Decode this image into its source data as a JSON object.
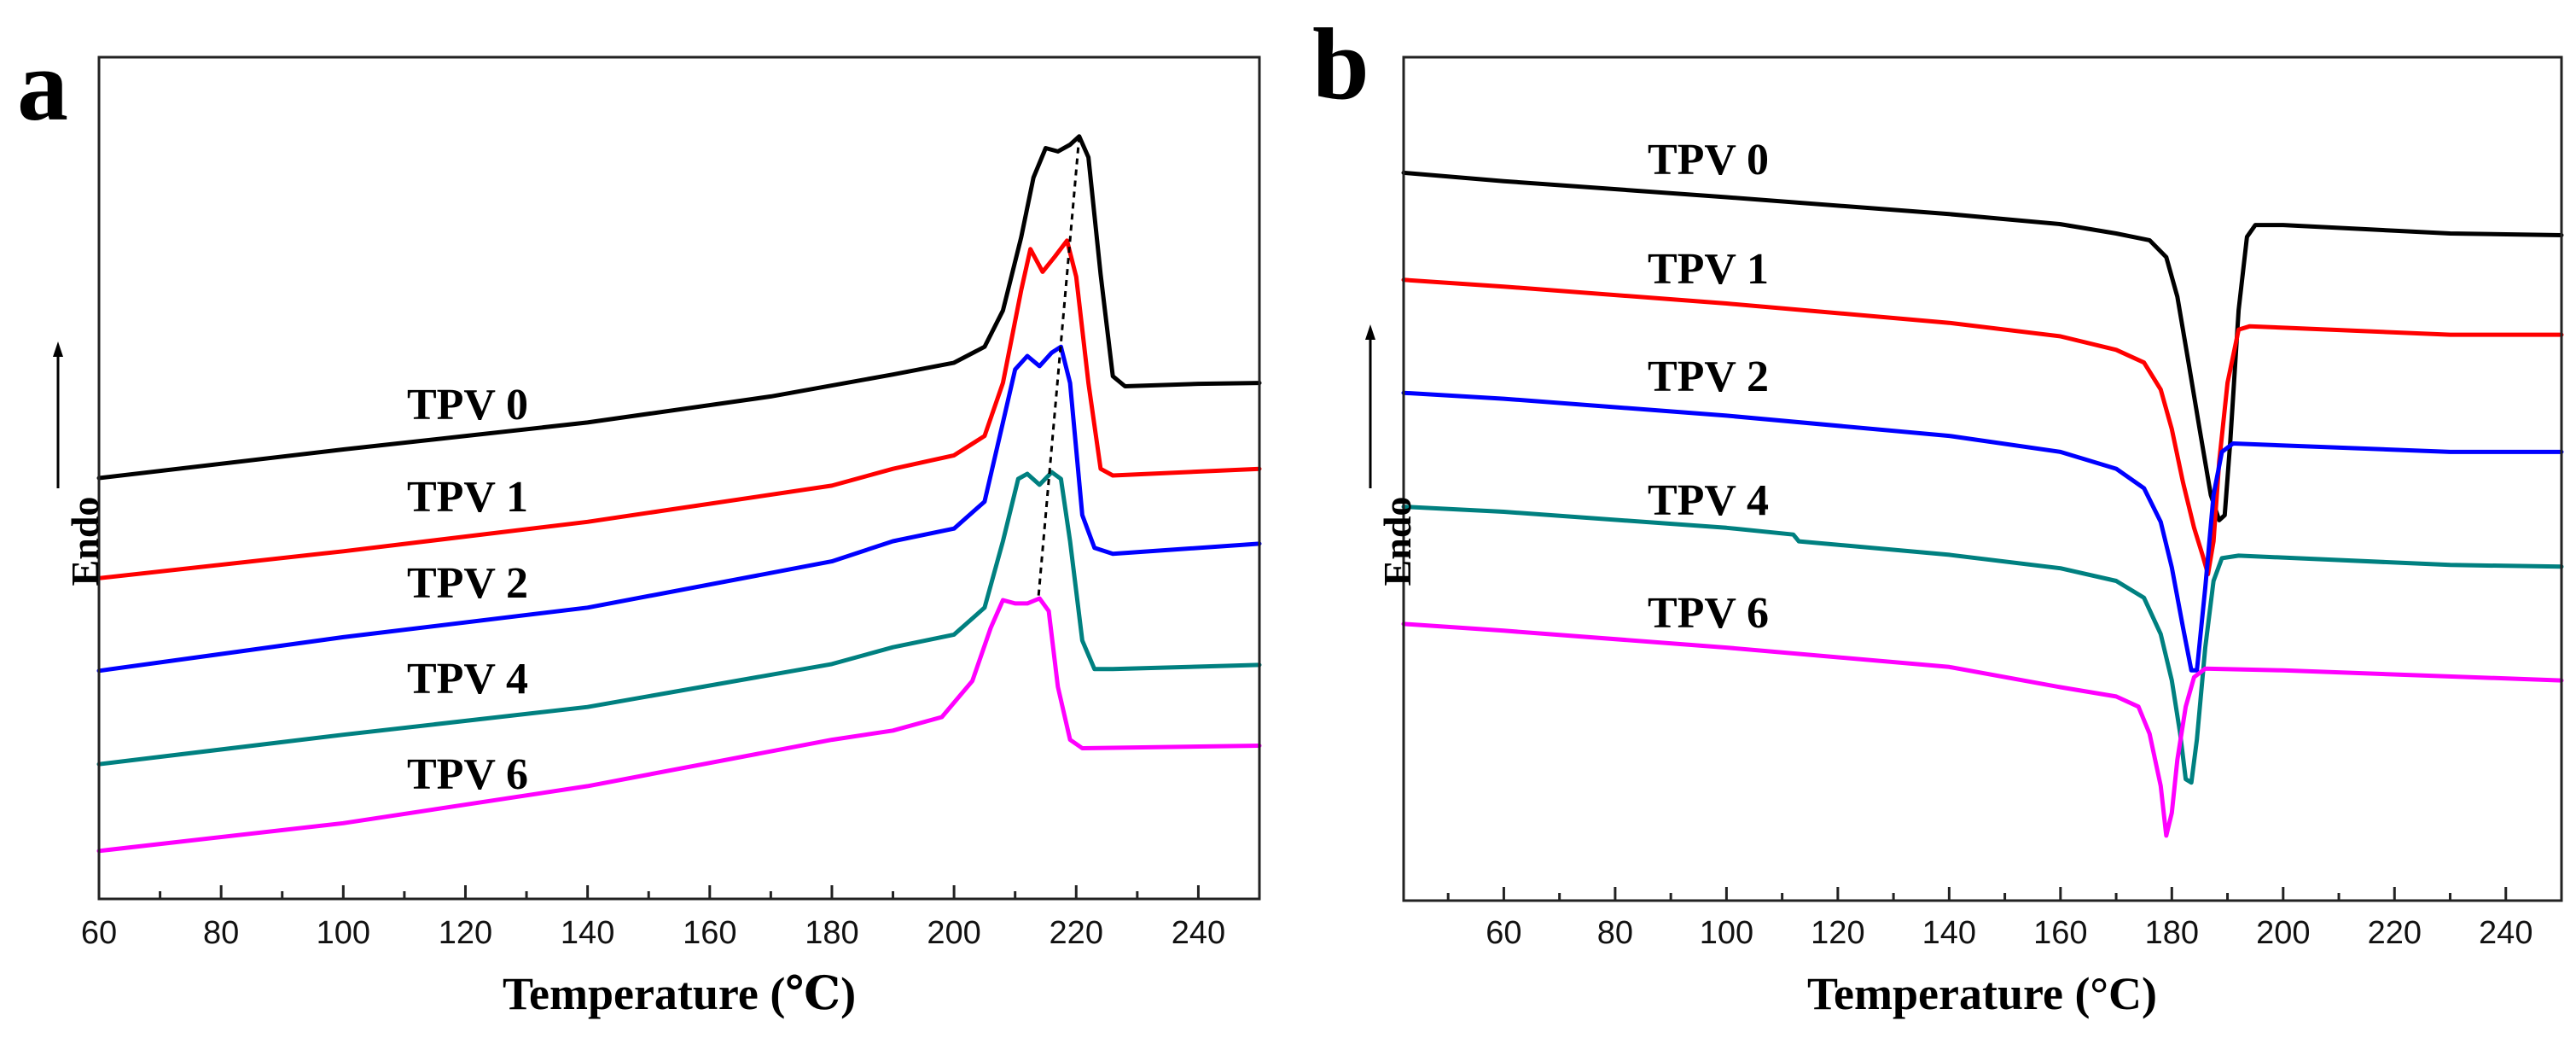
{
  "chart_data": [
    {
      "panel_label": "a",
      "type": "line",
      "title": "",
      "xlabel": "Temperature (℃)",
      "ylabel": "Endo",
      "xlim": [
        60,
        250
      ],
      "ylim": [
        0,
        100
      ],
      "xticks": [
        60,
        80,
        100,
        120,
        140,
        160,
        180,
        200,
        220,
        240
      ],
      "xtick_labels": [
        "60",
        "80",
        "100",
        "120",
        "140",
        "160",
        "180",
        "200",
        "220",
        "240"
      ],
      "grid": false,
      "series": [
        {
          "name": "TPV 0",
          "color": "#000000",
          "points": [
            [
              60,
              50.0
            ],
            [
              100,
              53.4
            ],
            [
              140,
              56.6
            ],
            [
              170,
              59.7
            ],
            [
              190,
              62.3
            ],
            [
              200,
              63.7
            ],
            [
              205,
              65.6
            ],
            [
              208,
              69.9
            ],
            [
              211,
              78.6
            ],
            [
              213,
              85.7
            ],
            [
              215,
              89.2
            ],
            [
              217,
              88.8
            ],
            [
              219,
              89.6
            ],
            [
              220.5,
              90.6
            ],
            [
              222,
              88.1
            ],
            [
              224,
              74.2
            ],
            [
              226,
              62.1
            ],
            [
              228,
              60.9
            ],
            [
              240,
              61.2
            ],
            [
              250,
              61.3
            ]
          ]
        },
        {
          "name": "TPV 1",
          "color": "#ff0000",
          "points": [
            [
              60,
              38.1
            ],
            [
              100,
              41.3
            ],
            [
              140,
              44.8
            ],
            [
              180,
              49.1
            ],
            [
              190,
              51.1
            ],
            [
              200,
              52.7
            ],
            [
              205,
              55.0
            ],
            [
              208,
              61.3
            ],
            [
              211,
              72.3
            ],
            [
              212.5,
              77.2
            ],
            [
              214.5,
              74.5
            ],
            [
              216.5,
              76.3
            ],
            [
              218.5,
              78.2
            ],
            [
              220,
              73.9
            ],
            [
              222,
              61.3
            ],
            [
              224,
              51.1
            ],
            [
              226,
              50.3
            ],
            [
              250,
              51.1
            ]
          ]
        },
        {
          "name": "TPV 2",
          "color": "#0000ff",
          "points": [
            [
              60,
              27.1
            ],
            [
              100,
              31.1
            ],
            [
              140,
              34.6
            ],
            [
              180,
              40.1
            ],
            [
              190,
              42.5
            ],
            [
              200,
              44.0
            ],
            [
              205,
              47.2
            ],
            [
              208,
              56.6
            ],
            [
              210,
              62.9
            ],
            [
              212,
              64.5
            ],
            [
              214,
              63.3
            ],
            [
              216,
              64.9
            ],
            [
              217.5,
              65.6
            ],
            [
              219,
              61.3
            ],
            [
              221,
              45.6
            ],
            [
              223,
              41.7
            ],
            [
              226,
              41.0
            ],
            [
              250,
              42.2
            ]
          ]
        },
        {
          "name": "TPV 4",
          "color": "#008080",
          "points": [
            [
              60,
              16.0
            ],
            [
              100,
              19.5
            ],
            [
              140,
              22.8
            ],
            [
              180,
              27.9
            ],
            [
              190,
              29.9
            ],
            [
              200,
              31.4
            ],
            [
              205,
              34.6
            ],
            [
              208,
              42.5
            ],
            [
              210.5,
              49.9
            ],
            [
              212,
              50.5
            ],
            [
              214,
              49.2
            ],
            [
              216,
              50.7
            ],
            [
              217.5,
              49.9
            ],
            [
              219,
              42.5
            ],
            [
              221,
              30.7
            ],
            [
              223,
              27.3
            ],
            [
              226,
              27.3
            ],
            [
              250,
              27.8
            ]
          ]
        },
        {
          "name": "TPV 6",
          "color": "#ff00ff",
          "points": [
            [
              60,
              5.7
            ],
            [
              100,
              9.0
            ],
            [
              140,
              13.4
            ],
            [
              180,
              18.9
            ],
            [
              190,
              20.0
            ],
            [
              198,
              21.6
            ],
            [
              203,
              25.9
            ],
            [
              206,
              32.2
            ],
            [
              208,
              35.5
            ],
            [
              210,
              35.1
            ],
            [
              212,
              35.1
            ],
            [
              214,
              35.7
            ],
            [
              215.5,
              34.2
            ],
            [
              217,
              25.2
            ],
            [
              219,
              18.9
            ],
            [
              221,
              17.9
            ],
            [
              250,
              18.2
            ]
          ]
        }
      ],
      "guide_line": {
        "style": "dashed",
        "color": "#000000",
        "points": [
          [
            220.5,
            90.6
          ],
          [
            213.8,
            35.7
          ]
        ]
      }
    },
    {
      "panel_label": "b",
      "type": "line",
      "title": "",
      "xlabel": "Temperature (°C)",
      "ylabel": "Endo",
      "xlim": [
        42,
        250
      ],
      "ylim": [
        0,
        100
      ],
      "xticks": [
        60,
        80,
        100,
        120,
        140,
        160,
        180,
        200,
        220,
        240
      ],
      "xtick_labels": [
        "60",
        "80",
        "100",
        "120",
        "140",
        "160",
        "180",
        "200",
        "220",
        "240"
      ],
      "grid": false,
      "series": [
        {
          "name": "TPV 0",
          "color": "#000000",
          "points": [
            [
              42,
              86.3
            ],
            [
              60,
              85.3
            ],
            [
              100,
              83.4
            ],
            [
              140,
              81.4
            ],
            [
              160,
              80.2
            ],
            [
              170,
              79.1
            ],
            [
              176,
              78.3
            ],
            [
              179,
              76.3
            ],
            [
              181,
              71.6
            ],
            [
              183,
              63.8
            ],
            [
              185,
              55.9
            ],
            [
              187,
              48.1
            ],
            [
              188.5,
              45.1
            ],
            [
              189.5,
              45.7
            ],
            [
              190.5,
              54.4
            ],
            [
              192,
              70.0
            ],
            [
              193.5,
              78.7
            ],
            [
              195,
              80.1
            ],
            [
              200,
              80.1
            ],
            [
              230,
              79.1
            ],
            [
              250,
              78.9
            ]
          ]
        },
        {
          "name": "TPV 1",
          "color": "#ff0000",
          "points": [
            [
              42,
              73.6
            ],
            [
              60,
              72.8
            ],
            [
              100,
              70.8
            ],
            [
              140,
              68.5
            ],
            [
              160,
              66.9
            ],
            [
              170,
              65.3
            ],
            [
              175,
              63.8
            ],
            [
              178,
              60.6
            ],
            [
              180,
              55.9
            ],
            [
              182,
              49.6
            ],
            [
              184,
              44.2
            ],
            [
              185.5,
              41.0
            ],
            [
              186.5,
              38.7
            ],
            [
              187.5,
              42.6
            ],
            [
              188.5,
              52.0
            ],
            [
              190,
              61.4
            ],
            [
              192,
              67.7
            ],
            [
              194,
              68.1
            ],
            [
              230,
              67.1
            ],
            [
              250,
              67.1
            ]
          ]
        },
        {
          "name": "TPV 2",
          "color": "#0000ff",
          "points": [
            [
              42,
              60.2
            ],
            [
              60,
              59.5
            ],
            [
              100,
              57.5
            ],
            [
              140,
              55.1
            ],
            [
              160,
              53.2
            ],
            [
              170,
              51.2
            ],
            [
              175,
              48.9
            ],
            [
              178,
              44.9
            ],
            [
              180,
              39.5
            ],
            [
              182,
              32.4
            ],
            [
              183.5,
              27.3
            ],
            [
              184.5,
              27.3
            ],
            [
              186,
              37.1
            ],
            [
              187.5,
              48.1
            ],
            [
              189,
              53.2
            ],
            [
              191,
              54.2
            ],
            [
              230,
              53.2
            ],
            [
              250,
              53.2
            ]
          ]
        },
        {
          "name": "TPV 4",
          "color": "#008080",
          "points": [
            [
              42,
              46.7
            ],
            [
              60,
              46.1
            ],
            [
              100,
              44.2
            ],
            [
              112,
              43.4
            ],
            [
              113,
              42.6
            ],
            [
              140,
              41.0
            ],
            [
              160,
              39.4
            ],
            [
              170,
              37.9
            ],
            [
              175,
              35.9
            ],
            [
              178,
              31.6
            ],
            [
              180,
              26.1
            ],
            [
              181.5,
              19.8
            ],
            [
              182.5,
              14.4
            ],
            [
              183.5,
              14.0
            ],
            [
              184.5,
              19.1
            ],
            [
              186,
              30.0
            ],
            [
              187.5,
              37.9
            ],
            [
              189,
              40.6
            ],
            [
              192,
              40.9
            ],
            [
              230,
              39.8
            ],
            [
              250,
              39.6
            ]
          ]
        },
        {
          "name": "TPV 6",
          "color": "#ff00ff",
          "points": [
            [
              42,
              32.8
            ],
            [
              60,
              32.0
            ],
            [
              100,
              30.0
            ],
            [
              140,
              27.7
            ],
            [
              160,
              25.3
            ],
            [
              170,
              24.2
            ],
            [
              174,
              23.0
            ],
            [
              176,
              19.8
            ],
            [
              178,
              13.6
            ],
            [
              179,
              7.7
            ],
            [
              180,
              10.4
            ],
            [
              181,
              16.7
            ],
            [
              182.5,
              23.0
            ],
            [
              184,
              26.5
            ],
            [
              186,
              27.5
            ],
            [
              200,
              27.3
            ],
            [
              250,
              26.1
            ]
          ]
        }
      ]
    }
  ]
}
